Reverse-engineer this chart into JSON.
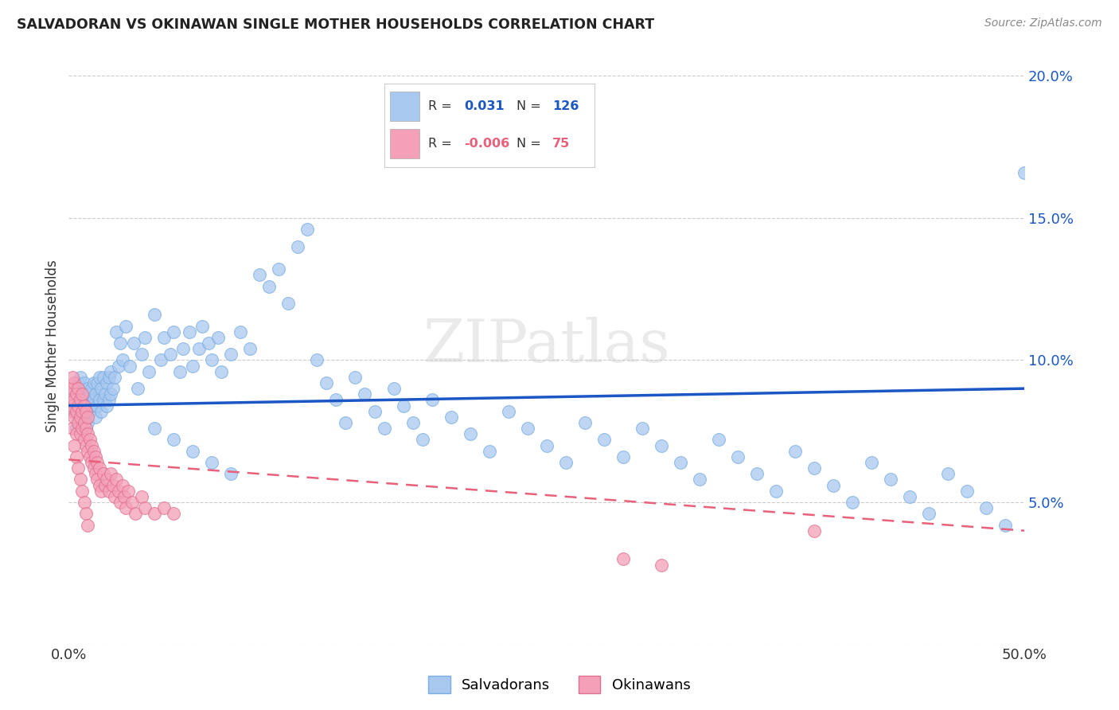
{
  "title": "SALVADORAN VS OKINAWAN SINGLE MOTHER HOUSEHOLDS CORRELATION CHART",
  "source": "Source: ZipAtlas.com",
  "ylabel": "Single Mother Households",
  "xlim": [
    0.0,
    0.5
  ],
  "ylim": [
    0.0,
    0.21
  ],
  "salvadoran_color": "#a8c8f0",
  "salvadoran_edge": "#7aaee0",
  "okinawan_color": "#f4a0b8",
  "okinawan_edge": "#e07090",
  "trend_salvadoran_color": "#1a56c4",
  "trend_okinawan_color": "#e8607a",
  "watermark": "ZIPatlas",
  "sal_trend_x0": 0.0,
  "sal_trend_y0": 0.084,
  "sal_trend_x1": 0.5,
  "sal_trend_y1": 0.09,
  "oki_trend_x0": 0.0,
  "oki_trend_y0": 0.065,
  "oki_trend_x1": 0.5,
  "oki_trend_y1": 0.04,
  "salvadoran_x": [
    0.002,
    0.003,
    0.004,
    0.004,
    0.005,
    0.005,
    0.006,
    0.006,
    0.007,
    0.007,
    0.008,
    0.008,
    0.009,
    0.009,
    0.01,
    0.01,
    0.01,
    0.011,
    0.011,
    0.012,
    0.012,
    0.013,
    0.013,
    0.014,
    0.014,
    0.015,
    0.015,
    0.016,
    0.016,
    0.017,
    0.017,
    0.018,
    0.018,
    0.019,
    0.02,
    0.02,
    0.021,
    0.021,
    0.022,
    0.022,
    0.023,
    0.024,
    0.025,
    0.026,
    0.027,
    0.028,
    0.03,
    0.032,
    0.034,
    0.036,
    0.038,
    0.04,
    0.042,
    0.045,
    0.048,
    0.05,
    0.053,
    0.055,
    0.058,
    0.06,
    0.063,
    0.065,
    0.068,
    0.07,
    0.073,
    0.075,
    0.078,
    0.08,
    0.085,
    0.09,
    0.095,
    0.1,
    0.105,
    0.11,
    0.115,
    0.12,
    0.125,
    0.13,
    0.135,
    0.14,
    0.145,
    0.15,
    0.155,
    0.16,
    0.165,
    0.17,
    0.175,
    0.18,
    0.185,
    0.19,
    0.2,
    0.21,
    0.22,
    0.23,
    0.24,
    0.25,
    0.26,
    0.27,
    0.28,
    0.29,
    0.3,
    0.31,
    0.32,
    0.33,
    0.34,
    0.35,
    0.36,
    0.37,
    0.38,
    0.39,
    0.4,
    0.41,
    0.42,
    0.43,
    0.44,
    0.45,
    0.46,
    0.47,
    0.48,
    0.49,
    0.5,
    0.045,
    0.055,
    0.065,
    0.075,
    0.085
  ],
  "salvadoran_y": [
    0.088,
    0.082,
    0.09,
    0.076,
    0.092,
    0.078,
    0.086,
    0.094,
    0.08,
    0.088,
    0.084,
    0.092,
    0.076,
    0.084,
    0.09,
    0.086,
    0.078,
    0.082,
    0.088,
    0.084,
    0.09,
    0.086,
    0.092,
    0.08,
    0.088,
    0.084,
    0.092,
    0.086,
    0.094,
    0.082,
    0.09,
    0.086,
    0.094,
    0.088,
    0.084,
    0.092,
    0.086,
    0.094,
    0.088,
    0.096,
    0.09,
    0.094,
    0.11,
    0.098,
    0.106,
    0.1,
    0.112,
    0.098,
    0.106,
    0.09,
    0.102,
    0.108,
    0.096,
    0.116,
    0.1,
    0.108,
    0.102,
    0.11,
    0.096,
    0.104,
    0.11,
    0.098,
    0.104,
    0.112,
    0.106,
    0.1,
    0.108,
    0.096,
    0.102,
    0.11,
    0.104,
    0.13,
    0.126,
    0.132,
    0.12,
    0.14,
    0.146,
    0.1,
    0.092,
    0.086,
    0.078,
    0.094,
    0.088,
    0.082,
    0.076,
    0.09,
    0.084,
    0.078,
    0.072,
    0.086,
    0.08,
    0.074,
    0.068,
    0.082,
    0.076,
    0.07,
    0.064,
    0.078,
    0.072,
    0.066,
    0.076,
    0.07,
    0.064,
    0.058,
    0.072,
    0.066,
    0.06,
    0.054,
    0.068,
    0.062,
    0.056,
    0.05,
    0.064,
    0.058,
    0.052,
    0.046,
    0.06,
    0.054,
    0.048,
    0.042,
    0.166,
    0.076,
    0.072,
    0.068,
    0.064,
    0.06
  ],
  "okinawan_x": [
    0.001,
    0.001,
    0.002,
    0.002,
    0.002,
    0.003,
    0.003,
    0.003,
    0.004,
    0.004,
    0.004,
    0.005,
    0.005,
    0.005,
    0.006,
    0.006,
    0.006,
    0.007,
    0.007,
    0.007,
    0.008,
    0.008,
    0.008,
    0.009,
    0.009,
    0.009,
    0.01,
    0.01,
    0.01,
    0.011,
    0.011,
    0.012,
    0.012,
    0.013,
    0.013,
    0.014,
    0.014,
    0.015,
    0.015,
    0.016,
    0.016,
    0.017,
    0.018,
    0.019,
    0.02,
    0.021,
    0.022,
    0.023,
    0.024,
    0.025,
    0.026,
    0.027,
    0.028,
    0.029,
    0.03,
    0.031,
    0.033,
    0.035,
    0.038,
    0.04,
    0.045,
    0.05,
    0.055,
    0.002,
    0.003,
    0.004,
    0.005,
    0.006,
    0.007,
    0.008,
    0.009,
    0.01,
    0.29,
    0.31,
    0.39
  ],
  "okinawan_y": [
    0.088,
    0.082,
    0.076,
    0.084,
    0.09,
    0.08,
    0.086,
    0.092,
    0.074,
    0.082,
    0.088,
    0.078,
    0.084,
    0.09,
    0.074,
    0.08,
    0.086,
    0.076,
    0.082,
    0.088,
    0.072,
    0.078,
    0.084,
    0.07,
    0.076,
    0.082,
    0.068,
    0.074,
    0.08,
    0.066,
    0.072,
    0.064,
    0.07,
    0.062,
    0.068,
    0.06,
    0.066,
    0.058,
    0.064,
    0.056,
    0.062,
    0.054,
    0.06,
    0.056,
    0.058,
    0.054,
    0.06,
    0.056,
    0.052,
    0.058,
    0.054,
    0.05,
    0.056,
    0.052,
    0.048,
    0.054,
    0.05,
    0.046,
    0.052,
    0.048,
    0.046,
    0.048,
    0.046,
    0.094,
    0.07,
    0.066,
    0.062,
    0.058,
    0.054,
    0.05,
    0.046,
    0.042,
    0.03,
    0.028,
    0.04
  ]
}
